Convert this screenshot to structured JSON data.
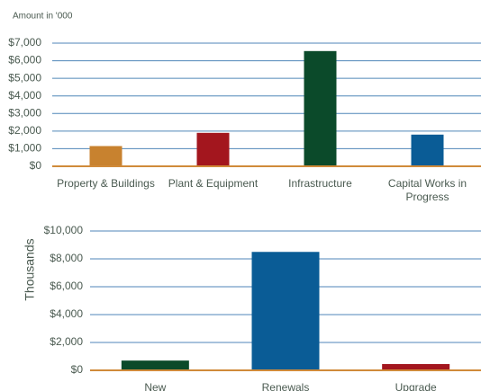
{
  "chart_data": [
    {
      "type": "bar",
      "subtitle": "Amount in '000",
      "categories": [
        "Property & Buildings",
        "Plant & Equipment",
        "Infrastructure",
        "Capital Works in Progress"
      ],
      "values": [
        1150,
        1900,
        6550,
        1800
      ],
      "colors": [
        "#c8822f",
        "#a3161e",
        "#0b4a2a",
        "#0a5c96"
      ],
      "ylim": [
        0,
        7000
      ],
      "yticks": [
        {
          "value": 0,
          "label": "$0"
        },
        {
          "value": 1000,
          "label": "$1,000"
        },
        {
          "value": 2000,
          "label": "$2,000"
        },
        {
          "value": 3000,
          "label": "$3,000"
        },
        {
          "value": 4000,
          "label": "$4,000"
        },
        {
          "value": 5000,
          "label": "$5,000"
        },
        {
          "value": 6000,
          "label": "$6,000"
        },
        {
          "value": 7000,
          "label": "$7,000"
        }
      ],
      "grid": true
    },
    {
      "type": "bar",
      "y_label": "Thousands",
      "categories": [
        "New",
        "Renewals",
        "Upgrade"
      ],
      "values": [
        700,
        8500,
        450
      ],
      "colors": [
        "#0b4a2a",
        "#0a5c96",
        "#a3161e"
      ],
      "ylim": [
        0,
        10000
      ],
      "yticks": [
        {
          "value": 0,
          "label": "$0"
        },
        {
          "value": 2000,
          "label": "$2,000"
        },
        {
          "value": 4000,
          "label": "$4,000"
        },
        {
          "value": 6000,
          "label": "$6,000"
        },
        {
          "value": 8000,
          "label": "$8,000"
        },
        {
          "value": 10000,
          "label": "$10,000"
        }
      ],
      "grid": true
    }
  ]
}
